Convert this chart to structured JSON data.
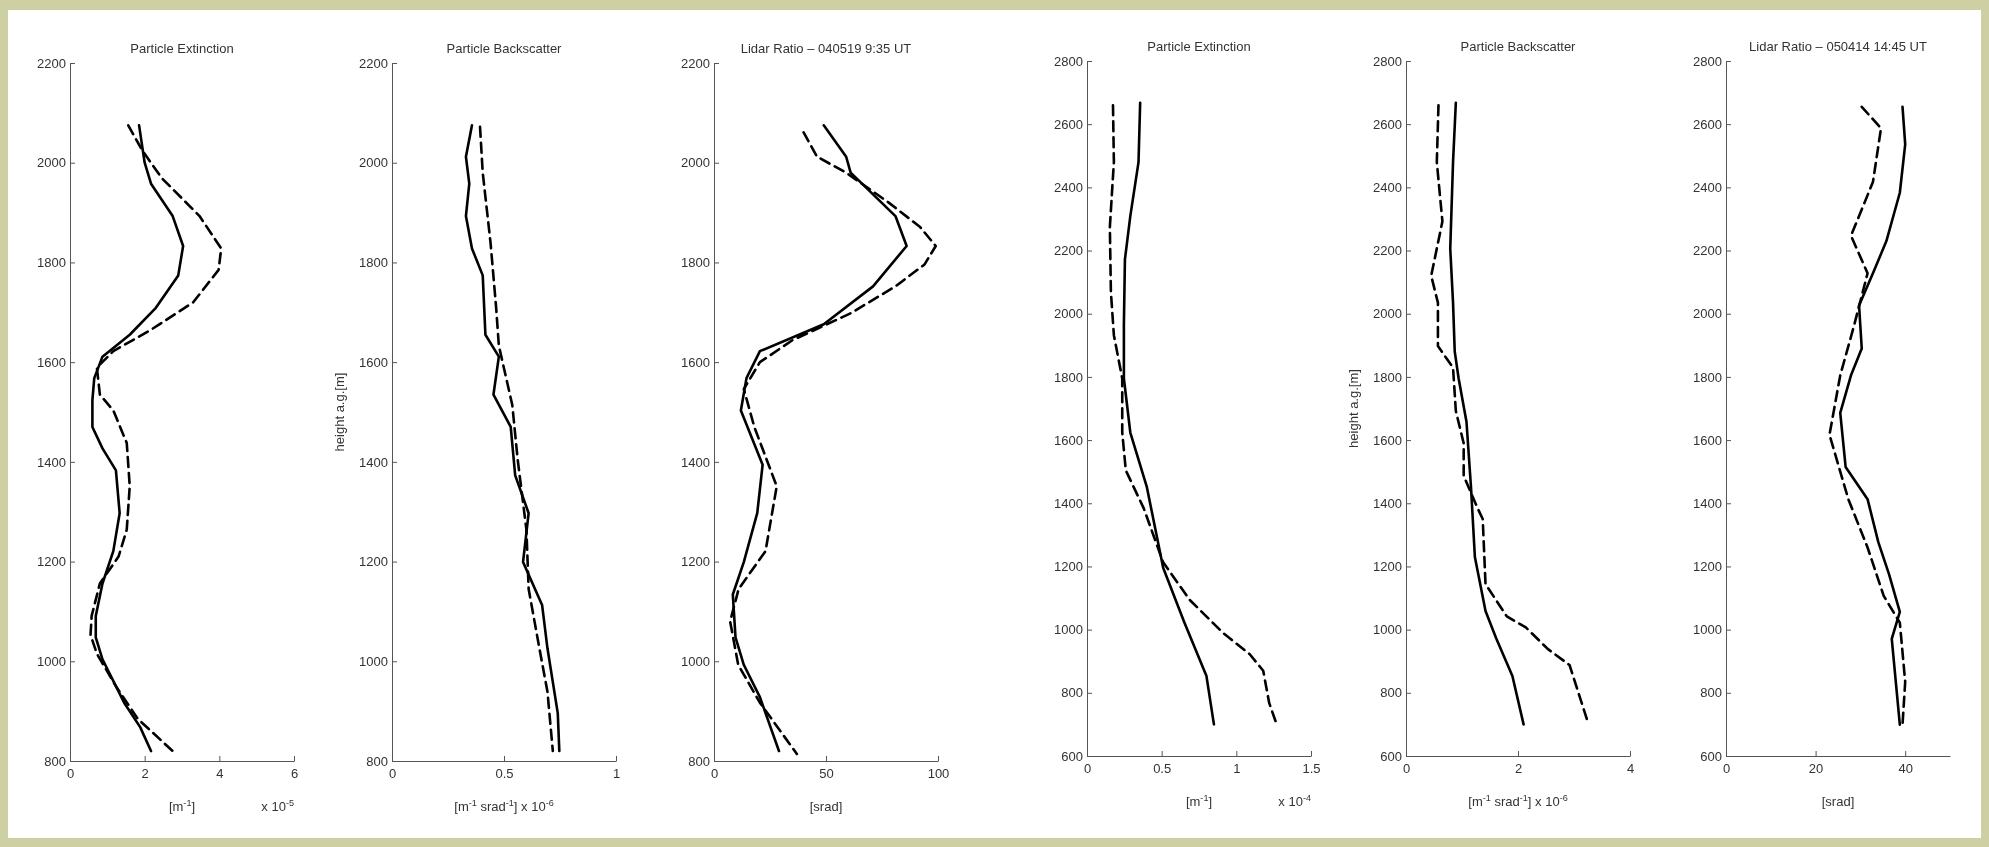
{
  "chart_data": [
    {
      "type": "line",
      "title": "Particle Extinction",
      "xlabel": "[m$^{-1}$]",
      "annotations": [
        "x 10$^{-5}$"
      ],
      "xlim": [
        0,
        6
      ],
      "xticks": [
        0,
        2,
        4,
        6
      ],
      "ylim": [
        800,
        2200
      ],
      "yticks": [
        800,
        1000,
        1200,
        1400,
        1600,
        1800,
        2000,
        2200
      ],
      "series": [
        {
          "color": "#000000",
          "line_style": "solid",
          "x": [
            1.85,
            2.0,
            2.17,
            2.75,
            3.03,
            2.9,
            2.3,
            1.6,
            0.87,
            0.65,
            0.6,
            0.6,
            0.87,
            1.23,
            1.33,
            1.16,
            0.87,
            0.69,
            0.69,
            0.87,
            1.45,
            1.88,
            2.17
          ],
          "values": [
            2075,
            2000,
            1958,
            1893,
            1833,
            1774,
            1709,
            1655,
            1611,
            1568,
            1524,
            1470,
            1427,
            1383,
            1297,
            1221,
            1156,
            1091,
            1048,
            1004,
            917,
            868,
            820
          ]
        },
        {
          "color": "#000000",
          "line_style": "dashed",
          "x": [
            1.56,
            1.95,
            2.46,
            3.47,
            4.05,
            3.98,
            3.3,
            2.17,
            1.16,
            0.72,
            0.8,
            1.16,
            1.52,
            1.6,
            1.52,
            1.3,
            0.8,
            0.58,
            0.55,
            0.72,
            1.23,
            1.81,
            2.75
          ],
          "values": [
            2075,
            2023,
            1969,
            1893,
            1828,
            1785,
            1720,
            1665,
            1622,
            1589,
            1535,
            1503,
            1438,
            1351,
            1264,
            1210,
            1156,
            1091,
            1053,
            1015,
            950,
            885,
            820
          ]
        }
      ]
    },
    {
      "type": "line",
      "title": "Particle Backscatter",
      "xlabel": "[m$^{-1}$ srad$^{-1}$] x 10$^{-6}$",
      "ylabel": "height a.g.[m]",
      "xlim": [
        0,
        1
      ],
      "xticks": [
        0,
        0.5,
        1
      ],
      "ylim": [
        800,
        2200
      ],
      "yticks": [
        800,
        1000,
        1200,
        1400,
        1600,
        1800,
        2000,
        2200
      ],
      "series": [
        {
          "color": "#000000",
          "line_style": "solid",
          "x": [
            0.357,
            0.33,
            0.345,
            0.33,
            0.357,
            0.405,
            0.417,
            0.477,
            0.453,
            0.53,
            0.55,
            0.61,
            0.585,
            0.67,
            0.694,
            0.74,
            0.747
          ],
          "values": [
            2075,
            2012,
            1958,
            1893,
            1828,
            1774,
            1655,
            1611,
            1535,
            1470,
            1373,
            1297,
            1199,
            1113,
            1026,
            896,
            820
          ]
        },
        {
          "color": "#000000",
          "line_style": "dashed",
          "x": [
            0.393,
            0.405,
            0.44,
            0.465,
            0.477,
            0.537,
            0.561,
            0.6,
            0.61,
            0.658,
            0.694,
            0.718
          ],
          "values": [
            2072,
            1980,
            1839,
            1709,
            1633,
            1514,
            1405,
            1264,
            1145,
            1026,
            939,
            820
          ]
        }
      ]
    },
    {
      "type": "line",
      "title": "Lidar Ratio – 040519 9:35 UT",
      "xlabel": "[srad]",
      "xlim": [
        0,
        100
      ],
      "xticks": [
        0,
        50,
        100
      ],
      "ylim": [
        800,
        2200
      ],
      "yticks": [
        800,
        1000,
        1200,
        1400,
        1600,
        1800,
        2000,
        2200
      ],
      "series": [
        {
          "color": "#000000",
          "line_style": "solid",
          "x": [
            49,
            59,
            61,
            81,
            86,
            71,
            49,
            20.5,
            14.5,
            12,
            21.7,
            19.3,
            13.3,
            8.4,
            9.6,
            13.3,
            20.5,
            29
          ],
          "values": [
            2075,
            2012,
            1980,
            1893,
            1833,
            1752,
            1676,
            1622,
            1568,
            1503,
            1394,
            1297,
            1199,
            1134,
            1048,
            993,
            928,
            820
          ]
        },
        {
          "color": "#000000",
          "line_style": "dashed",
          "x": [
            40,
            46,
            59,
            78,
            92,
            99,
            94,
            81,
            61,
            35,
            20.5,
            13.3,
            18,
            28,
            23,
            11,
            7.2,
            10.8,
            20.5,
            37
          ],
          "values": [
            2061,
            2012,
            1980,
            1920,
            1871,
            1833,
            1796,
            1752,
            1698,
            1644,
            1600,
            1546,
            1470,
            1351,
            1221,
            1145,
            1080,
            993,
            917,
            814
          ]
        }
      ]
    },
    {
      "type": "line",
      "title": "Particle Extinction",
      "xlabel": "[m$^{-1}$]",
      "annotations": [
        "x 10$^{-4}$"
      ],
      "xlim": [
        0,
        1.5
      ],
      "xticks": [
        0,
        0.5,
        1,
        1.5
      ],
      "ylim": [
        600,
        2800
      ],
      "yticks": [
        600,
        800,
        1000,
        1200,
        1400,
        1600,
        1800,
        2000,
        2200,
        2400,
        2600,
        2800
      ],
      "series": [
        {
          "color": "#000000",
          "line_style": "solid",
          "x": [
            0.356,
            0.345,
            0.29,
            0.254,
            0.247,
            0.247,
            0.29,
            0.4,
            0.51,
            0.65,
            0.8,
            0.85
          ],
          "values": [
            2668,
            2480,
            2309,
            2172,
            1966,
            1795,
            1624,
            1453,
            1196,
            1025,
            853,
            700
          ]
        },
        {
          "color": "#000000",
          "line_style": "dashed",
          "x": [
            0.174,
            0.18,
            0.153,
            0.16,
            0.18,
            0.236,
            0.236,
            0.26,
            0.38,
            0.51,
            0.69,
            0.91,
            1.09,
            1.18,
            1.22,
            1.27
          ],
          "values": [
            2660,
            2480,
            2274,
            2069,
            1932,
            1795,
            1624,
            1504,
            1384,
            1213,
            1093,
            990,
            922,
            870,
            768,
            700
          ]
        }
      ]
    },
    {
      "type": "line",
      "title": "Particle Backscatter",
      "xlabel": "[m$^{-1}$ srad$^{-1}$] x 10$^{-6}$",
      "ylabel": "height a.g.[m]",
      "xlim": [
        0,
        4
      ],
      "xticks": [
        0,
        2,
        4
      ],
      "ylim": [
        600,
        2800
      ],
      "yticks": [
        600,
        800,
        1000,
        1200,
        1400,
        1600,
        1800,
        2000,
        2200,
        2400,
        2600,
        2800
      ],
      "series": [
        {
          "color": "#000000",
          "line_style": "solid",
          "x": [
            0.89,
            0.84,
            0.79,
            0.84,
            0.87,
            0.94,
            1.08,
            1.16,
            1.23,
            1.42,
            1.61,
            1.9,
            2.1
          ],
          "values": [
            2668,
            2480,
            2206,
            2035,
            1881,
            1795,
            1658,
            1453,
            1230,
            1059,
            973,
            853,
            700
          ]
        },
        {
          "color": "#000000",
          "line_style": "dashed",
          "x": [
            0.58,
            0.55,
            0.65,
            0.45,
            0.57,
            0.57,
            0.84,
            0.89,
            1.03,
            1.03,
            1.28,
            1.37,
            1.42,
            1.8,
            2.14,
            2.53,
            2.92,
            3.26
          ],
          "values": [
            2660,
            2480,
            2292,
            2120,
            2035,
            1898,
            1829,
            1692,
            1590,
            1487,
            1384,
            1350,
            1144,
            1042,
            1007,
            939,
            888,
            700
          ]
        }
      ]
    },
    {
      "type": "line",
      "title": "Lidar Ratio – 050414 14:45 UT",
      "xlabel": "[srad]",
      "xlim": [
        0,
        50
      ],
      "xticks": [
        0,
        20,
        40
      ],
      "ylim": [
        600,
        2800
      ],
      "yticks": [
        600,
        800,
        1000,
        1200,
        1400,
        1600,
        1800,
        2000,
        2200,
        2400,
        2600,
        2800
      ],
      "series": [
        {
          "color": "#000000",
          "line_style": "solid",
          "x": [
            39.4,
            40,
            38.8,
            35.8,
            32.8,
            29.7,
            30.3,
            27.9,
            25.5,
            26.7,
            31.6,
            34,
            36.4,
            38.8,
            37,
            38.8
          ],
          "values": [
            2655,
            2536,
            2383,
            2230,
            2128,
            2026,
            1890,
            1805,
            1686,
            1515,
            1413,
            1277,
            1175,
            1056,
            971,
            699
          ]
        },
        {
          "color": "#000000",
          "line_style": "dashed",
          "x": [
            30.3,
            34.6,
            32.8,
            27.9,
            31.6,
            28.5,
            25.5,
            23.1,
            27.3,
            31.6,
            35.2,
            38.8,
            40,
            39.4
          ],
          "values": [
            2655,
            2587,
            2417,
            2247,
            2128,
            1958,
            1805,
            1617,
            1413,
            1260,
            1107,
            1022,
            835,
            699
          ]
        }
      ]
    }
  ]
}
